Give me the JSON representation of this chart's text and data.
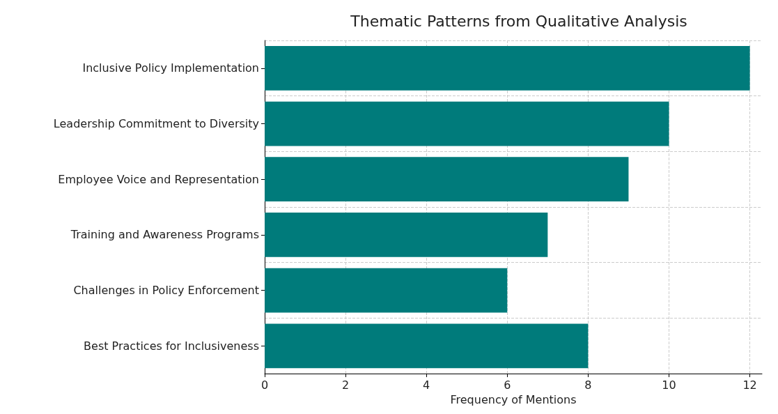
{
  "chart_data": {
    "type": "bar",
    "orientation": "horizontal",
    "title": "Thematic Patterns from Qualitative Analysis",
    "xlabel": "Frequency of Mentions",
    "categories": [
      "Inclusive Policy Implementation",
      "Leadership Commitment to Diversity",
      "Employee Voice and Representation",
      "Training and Awareness Programs",
      "Challenges in Policy Enforcement",
      "Best Practices for Inclusiveness"
    ],
    "values": [
      12,
      10,
      9,
      7,
      6,
      8
    ],
    "color": "#007b7b",
    "xlim": [
      0,
      12.3
    ],
    "xticks": [
      0,
      2,
      4,
      6,
      8,
      10,
      12
    ],
    "grid": true
  }
}
